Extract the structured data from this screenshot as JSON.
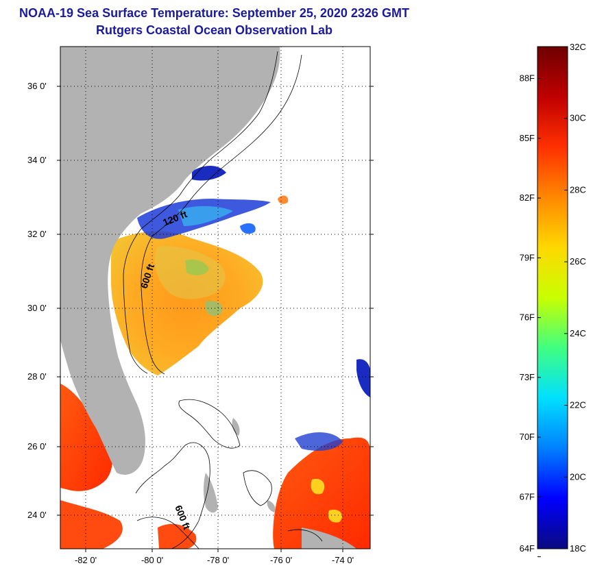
{
  "header": {
    "title_line1": "NOAA-19 Sea Surface Temperature:  September 25, 2020 2326 GMT",
    "title_line2": "Rutgers Coastal Ocean Observation Lab"
  },
  "map": {
    "lat_labels": [
      "36 0'",
      "34 0'",
      "32 0'",
      "30 0'",
      "28 0'",
      "26 0'",
      "24 0'"
    ],
    "lon_labels": [
      "-82 0'",
      "-80 0'",
      "-78 0'",
      "-76 0'",
      "-74 0'"
    ],
    "contour_labels": [
      "120 ft",
      "600 ft",
      "600 ft"
    ]
  },
  "colorbar": {
    "fahrenheit_labels": [
      "88F",
      "85F",
      "82F",
      "79F",
      "76F",
      "73F",
      "70F",
      "67F",
      "64F"
    ],
    "celsius_labels": [
      "32C",
      "30C",
      "28C",
      "26C",
      "24C",
      "22C",
      "20C",
      "18C"
    ],
    "range_c": [
      18,
      32
    ],
    "colors": [
      "#0a0a80",
      "#0000ff",
      "#0080ff",
      "#00e0ff",
      "#40ff80",
      "#c8ff00",
      "#ffd800",
      "#ff8800",
      "#ff3000",
      "#c00000",
      "#6e0000"
    ]
  },
  "colors": {
    "land": "#b2b2b2",
    "ocean_nodata": "#ffffff",
    "title": "#1a1a9c"
  }
}
